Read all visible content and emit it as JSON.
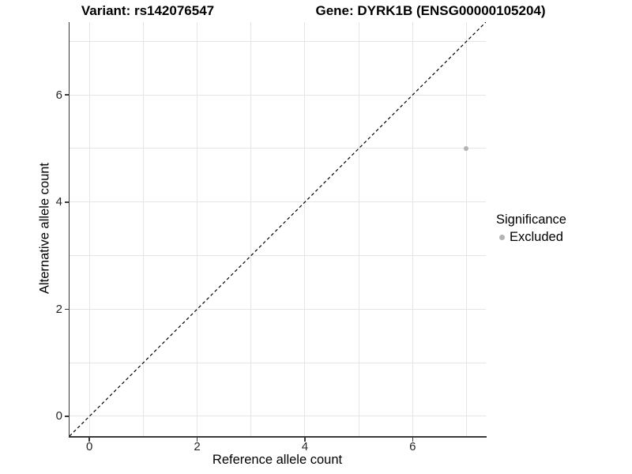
{
  "header": {
    "title_variant": "Variant: rs142076547",
    "title_gene": "Gene: DYRK1B (ENSG00000105204)"
  },
  "chart_data": {
    "type": "scatter",
    "xlabel": "Reference allele count",
    "ylabel": "Alternative allele count",
    "xlim": [
      -0.37,
      7.36
    ],
    "ylim": [
      -0.37,
      7.36
    ],
    "x_ticks": [
      0,
      2,
      4,
      6
    ],
    "y_ticks": [
      0,
      2,
      4,
      6
    ],
    "gridlines_x": [
      0,
      1,
      2,
      3,
      4,
      5,
      6,
      7
    ],
    "gridlines_y": [
      0,
      1,
      2,
      3,
      4,
      5,
      6,
      7
    ],
    "grid": "on",
    "points": [
      {
        "x": 7,
        "y": 5,
        "series": "Excluded"
      }
    ],
    "reference_line": {
      "equation": "y = x",
      "style": "dashed",
      "color": "#000000"
    },
    "legend": {
      "title": "Significance",
      "position": "right",
      "items": [
        {
          "label": "Excluded",
          "color": "#b3b3b3"
        }
      ]
    },
    "colors": {
      "point": "#b3b3b3",
      "gridline": "#e5e5e5",
      "axis_line": "#3a3a3a",
      "tick_text": "#262626"
    }
  }
}
